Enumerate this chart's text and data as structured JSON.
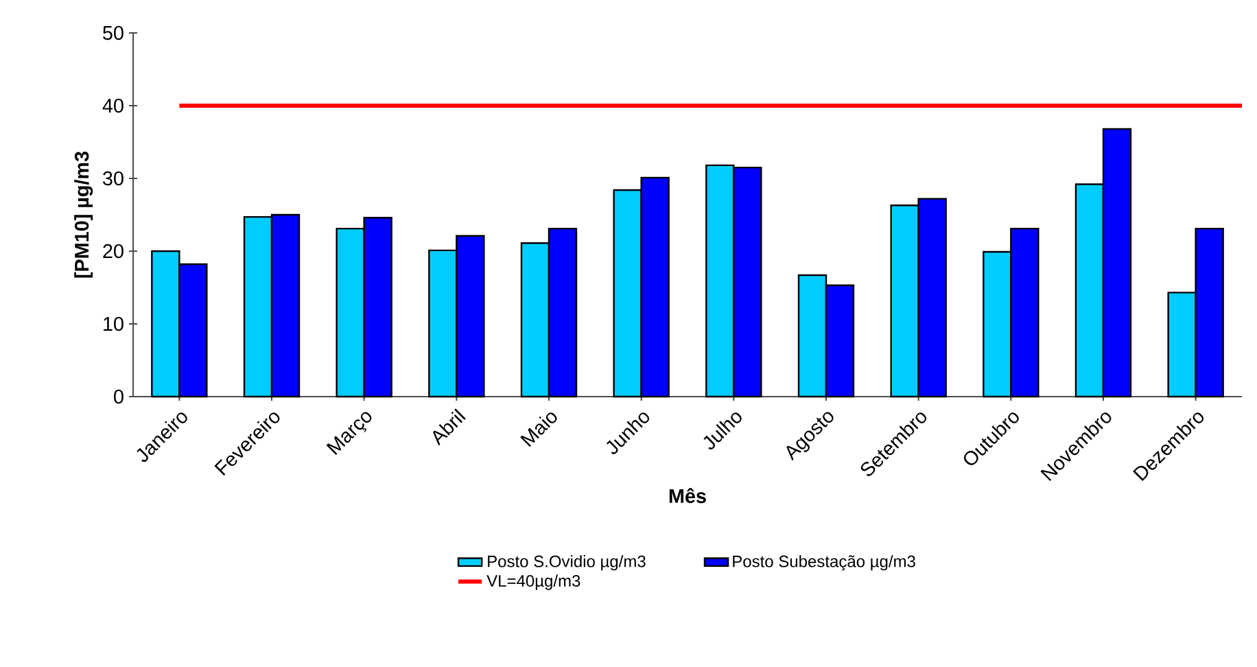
{
  "chart_data": {
    "type": "bar",
    "categories": [
      "Janeiro",
      "Fevereiro",
      "Março",
      "Abril",
      "Maio",
      "Junho",
      "Julho",
      "Agosto",
      "Setembro",
      "Outubro",
      "Novembro",
      "Dezembro"
    ],
    "series": [
      {
        "name": "Posto S.Ovidio  µg/m3",
        "color": "#00ccff",
        "values": [
          20.0,
          24.7,
          23.1,
          20.1,
          21.1,
          28.4,
          31.8,
          16.7,
          26.3,
          19.9,
          29.2,
          14.3
        ]
      },
      {
        "name": "Posto Subestação  µg/m3",
        "color": "#0000ff",
        "values": [
          18.2,
          25.0,
          24.6,
          22.1,
          23.1,
          30.1,
          31.5,
          15.3,
          27.2,
          23.1,
          36.8,
          23.1
        ]
      }
    ],
    "xlabel": "Mês",
    "ylabel": "[PM10] µg/m3",
    "ylim": [
      0,
      50
    ],
    "yticks": [
      0,
      10,
      20,
      30,
      40,
      50
    ],
    "ref_lines": [
      {
        "axis": "y",
        "value": 40,
        "label": "VL=40µg/m3",
        "color": "#ff0000"
      }
    ],
    "legend": "bottom"
  }
}
